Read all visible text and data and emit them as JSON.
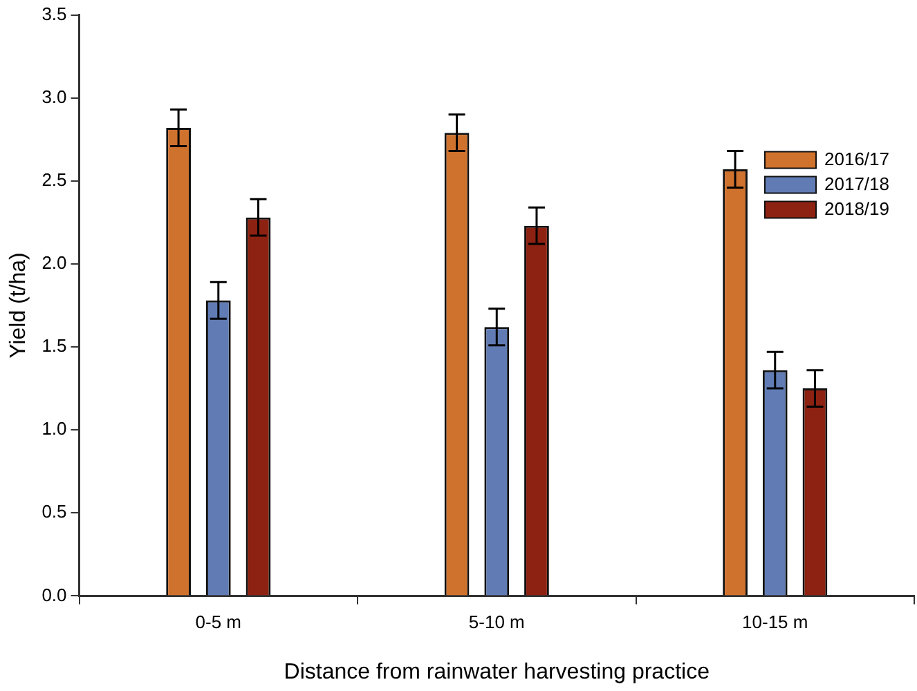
{
  "chart_data": {
    "type": "bar",
    "xlabel": "Distance from rainwater harvesting practice",
    "ylabel": "Yield (t/ha)",
    "categories": [
      "0-5 m",
      "5-10 m",
      "10-15 m"
    ],
    "series": [
      {
        "name": "2016/17",
        "color": "#cf722e",
        "values": [
          2.82,
          2.79,
          2.57
        ],
        "errors": [
          0.11,
          0.11,
          0.11
        ]
      },
      {
        "name": "2017/18",
        "color": "#617cb4",
        "values": [
          1.78,
          1.62,
          1.36
        ],
        "errors": [
          0.11,
          0.11,
          0.11
        ]
      },
      {
        "name": "2018/19",
        "color": "#8e2212",
        "values": [
          2.28,
          2.23,
          1.25
        ],
        "errors": [
          0.11,
          0.11,
          0.11
        ]
      }
    ],
    "ylim": [
      0,
      3.5
    ],
    "yticks": [
      {
        "value": 0,
        "label": "0.0"
      },
      0.5,
      {
        "value": 1,
        "label": "1.0"
      },
      1.5,
      {
        "value": 2,
        "label": "2.0"
      },
      2.5,
      {
        "value": 3,
        "label": "3.0"
      },
      3.5
    ],
    "grid": false,
    "legend": "top right"
  }
}
